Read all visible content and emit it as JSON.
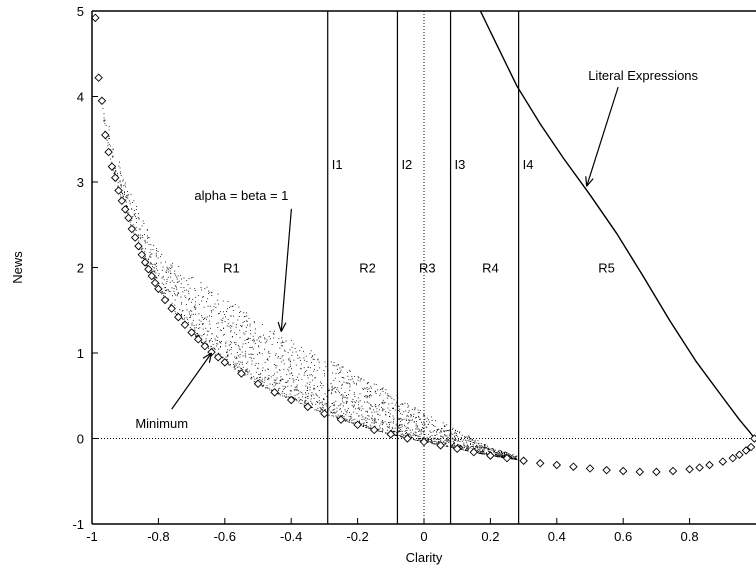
{
  "chart_data": {
    "type": "scatter",
    "title": "",
    "xlabel": "Clarity",
    "ylabel": "News",
    "xlim": [
      -1,
      1
    ],
    "ylim": [
      -1,
      5
    ],
    "xticks": [
      "-1",
      "-0.8",
      "-0.6",
      "-0.4",
      "-0.2",
      "0",
      "0.2",
      "0.4",
      "0.6",
      "0.8"
    ],
    "yticks": [
      "-1",
      "0",
      "1",
      "2",
      "3",
      "4",
      "5"
    ],
    "reference_lines": {
      "horizontal_zero": true,
      "vertical_zero": true,
      "style": "dotted"
    },
    "boundaries": [
      {
        "label": "I1",
        "x": -0.29
      },
      {
        "label": "I2",
        "x": -0.08
      },
      {
        "label": "I3",
        "x": 0.08
      },
      {
        "label": "I4",
        "x": 0.285
      }
    ],
    "regions": [
      {
        "label": "R1",
        "x": -0.58,
        "y": 2.0
      },
      {
        "label": "R2",
        "x": -0.17,
        "y": 2.0
      },
      {
        "label": "R3",
        "x": 0.01,
        "y": 2.0
      },
      {
        "label": "R4",
        "x": 0.2,
        "y": 2.0
      },
      {
        "label": "R5",
        "x": 0.55,
        "y": 2.0
      }
    ],
    "annotations": [
      {
        "text": "Literal Expressions",
        "text_x": 0.66,
        "text_y": 4.25,
        "arrow_to_x": 0.49,
        "arrow_to_y": 2.95
      },
      {
        "text": "alpha = beta = 1",
        "text_x": -0.55,
        "text_y": 2.85,
        "arrow_to_x": -0.43,
        "arrow_to_y": 1.25
      },
      {
        "text": "Minimum",
        "text_x": -0.79,
        "text_y": 0.18,
        "arrow_to_x": -0.64,
        "arrow_to_y": 1.0
      }
    ],
    "series": [
      {
        "name": "Minimum",
        "marker": "diamond",
        "points": [
          [
            -0.99,
            4.92
          ],
          [
            -0.98,
            4.22
          ],
          [
            -0.97,
            3.95
          ],
          [
            -0.96,
            3.55
          ],
          [
            -0.95,
            3.35
          ],
          [
            -0.94,
            3.18
          ],
          [
            -0.93,
            3.05
          ],
          [
            -0.92,
            2.9
          ],
          [
            -0.91,
            2.78
          ],
          [
            -0.9,
            2.68
          ],
          [
            -0.89,
            2.58
          ],
          [
            -0.88,
            2.45
          ],
          [
            -0.87,
            2.35
          ],
          [
            -0.86,
            2.25
          ],
          [
            -0.85,
            2.15
          ],
          [
            -0.84,
            2.06
          ],
          [
            -0.83,
            1.98
          ],
          [
            -0.82,
            1.9
          ],
          [
            -0.81,
            1.82
          ],
          [
            -0.8,
            1.75
          ],
          [
            -0.78,
            1.62
          ],
          [
            -0.76,
            1.52
          ],
          [
            -0.74,
            1.42
          ],
          [
            -0.72,
            1.33
          ],
          [
            -0.7,
            1.24
          ],
          [
            -0.68,
            1.16
          ],
          [
            -0.66,
            1.08
          ],
          [
            -0.64,
            1.01
          ],
          [
            -0.62,
            0.95
          ],
          [
            -0.6,
            0.89
          ],
          [
            -0.55,
            0.76
          ],
          [
            -0.5,
            0.64
          ],
          [
            -0.45,
            0.54
          ],
          [
            -0.4,
            0.45
          ],
          [
            -0.35,
            0.37
          ],
          [
            -0.3,
            0.29
          ],
          [
            -0.25,
            0.22
          ],
          [
            -0.2,
            0.16
          ],
          [
            -0.15,
            0.1
          ],
          [
            -0.1,
            0.05
          ],
          [
            -0.05,
            0.0
          ],
          [
            0.0,
            -0.04
          ],
          [
            0.05,
            -0.08
          ],
          [
            0.1,
            -0.12
          ],
          [
            0.15,
            -0.16
          ],
          [
            0.2,
            -0.2
          ],
          [
            0.25,
            -0.23
          ],
          [
            0.3,
            -0.26
          ],
          [
            0.35,
            -0.29
          ],
          [
            0.4,
            -0.31
          ],
          [
            0.45,
            -0.33
          ],
          [
            0.5,
            -0.35
          ],
          [
            0.55,
            -0.37
          ],
          [
            0.6,
            -0.38
          ],
          [
            0.65,
            -0.39
          ],
          [
            0.7,
            -0.39
          ],
          [
            0.75,
            -0.38
          ],
          [
            0.8,
            -0.36
          ],
          [
            0.83,
            -0.34
          ],
          [
            0.86,
            -0.31
          ],
          [
            0.9,
            -0.27
          ],
          [
            0.93,
            -0.23
          ],
          [
            0.95,
            -0.19
          ],
          [
            0.97,
            -0.14
          ],
          [
            0.985,
            -0.1
          ],
          [
            0.995,
            0.0
          ]
        ]
      },
      {
        "name": "alpha = beta = 1",
        "marker": "dot",
        "note_range": "sample spread above the minimum curve, x from -1 to 0.3",
        "upper_envelope": [
          [
            -0.97,
            4.0
          ],
          [
            -0.9,
            3.0
          ],
          [
            -0.8,
            2.2
          ],
          [
            -0.7,
            1.9
          ],
          [
            -0.6,
            1.65
          ],
          [
            -0.5,
            1.4
          ],
          [
            -0.4,
            1.15
          ],
          [
            -0.3,
            0.95
          ],
          [
            -0.2,
            0.75
          ],
          [
            -0.1,
            0.55
          ],
          [
            0.0,
            0.3
          ],
          [
            0.1,
            0.1
          ],
          [
            0.2,
            -0.1
          ],
          [
            0.28,
            -0.2
          ]
        ]
      },
      {
        "name": "Literal Expressions",
        "marker": "line",
        "points": [
          [
            0.17,
            5.0
          ],
          [
            0.22,
            4.6
          ],
          [
            0.28,
            4.12
          ],
          [
            0.35,
            3.68
          ],
          [
            0.42,
            3.28
          ],
          [
            0.5,
            2.85
          ],
          [
            0.58,
            2.4
          ],
          [
            0.66,
            1.9
          ],
          [
            0.74,
            1.38
          ],
          [
            0.82,
            0.9
          ],
          [
            0.9,
            0.48
          ],
          [
            0.95,
            0.22
          ],
          [
            0.98,
            0.08
          ],
          [
            1.0,
            -0.02
          ]
        ]
      }
    ]
  }
}
